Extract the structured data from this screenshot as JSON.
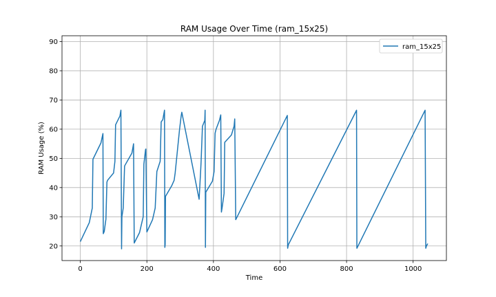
{
  "chart_data": {
    "type": "line",
    "title": "RAM Usage Over Time (ram_15x25)",
    "xlabel": "Time",
    "ylabel": "RAM Usage (%)",
    "xlim": [
      -55,
      1100
    ],
    "ylim": [
      15,
      92
    ],
    "xticks": [
      0,
      200,
      400,
      600,
      800,
      1000
    ],
    "yticks": [
      20,
      30,
      40,
      50,
      60,
      70,
      80,
      90
    ],
    "grid": true,
    "legend_position": "top-right",
    "series": [
      {
        "name": "ram_15x25",
        "color": "#1f77b4",
        "x": [
          0,
          27,
          36,
          38,
          62,
          68,
          69,
          72,
          77,
          80,
          82,
          100,
          104,
          106,
          119,
          122,
          124,
          125,
          129,
          133,
          134,
          155,
          160,
          162,
          178,
          189,
          191,
          196,
          197,
          200,
          217,
          225,
          230,
          240,
          243,
          248,
          253,
          254,
          255,
          256,
          275,
          282,
          285,
          298,
          303,
          305,
          357,
          362,
          363,
          367,
          374,
          375,
          376,
          377,
          397,
          402,
          405,
          408,
          418,
          422,
          424,
          426,
          432,
          434,
          454,
          462,
          464,
          467,
          622,
          623,
          625,
          827,
          830,
          831,
          1036,
          1038,
          1040,
          1044
        ],
        "y": [
          21.5,
          28.0,
          33.0,
          49.7,
          55.3,
          58.5,
          24.2,
          25.0,
          29.2,
          41.9,
          42.5,
          45.0,
          49.0,
          61.5,
          64.5,
          66.5,
          19.0,
          30.0,
          33.0,
          47.3,
          47.6,
          51.8,
          55.0,
          21.0,
          24.6,
          30.0,
          48.0,
          53.0,
          53.2,
          24.8,
          29.0,
          33.0,
          45.5,
          49.0,
          62.5,
          63.3,
          66.5,
          19.5,
          20.5,
          37.0,
          40.7,
          42.5,
          45.0,
          59.7,
          64.5,
          65.8,
          36.0,
          46.6,
          49.0,
          61.0,
          63.0,
          66.5,
          19.5,
          38.4,
          42.2,
          45.5,
          58.6,
          60.0,
          63.0,
          64.9,
          31.6,
          33.0,
          38.0,
          55.5,
          58.0,
          61.0,
          63.5,
          29.0,
          64.7,
          19.2,
          20.4,
          65.8,
          66.5,
          19.2,
          66.5,
          19.2,
          20.0,
          20.8
        ]
      }
    ]
  }
}
